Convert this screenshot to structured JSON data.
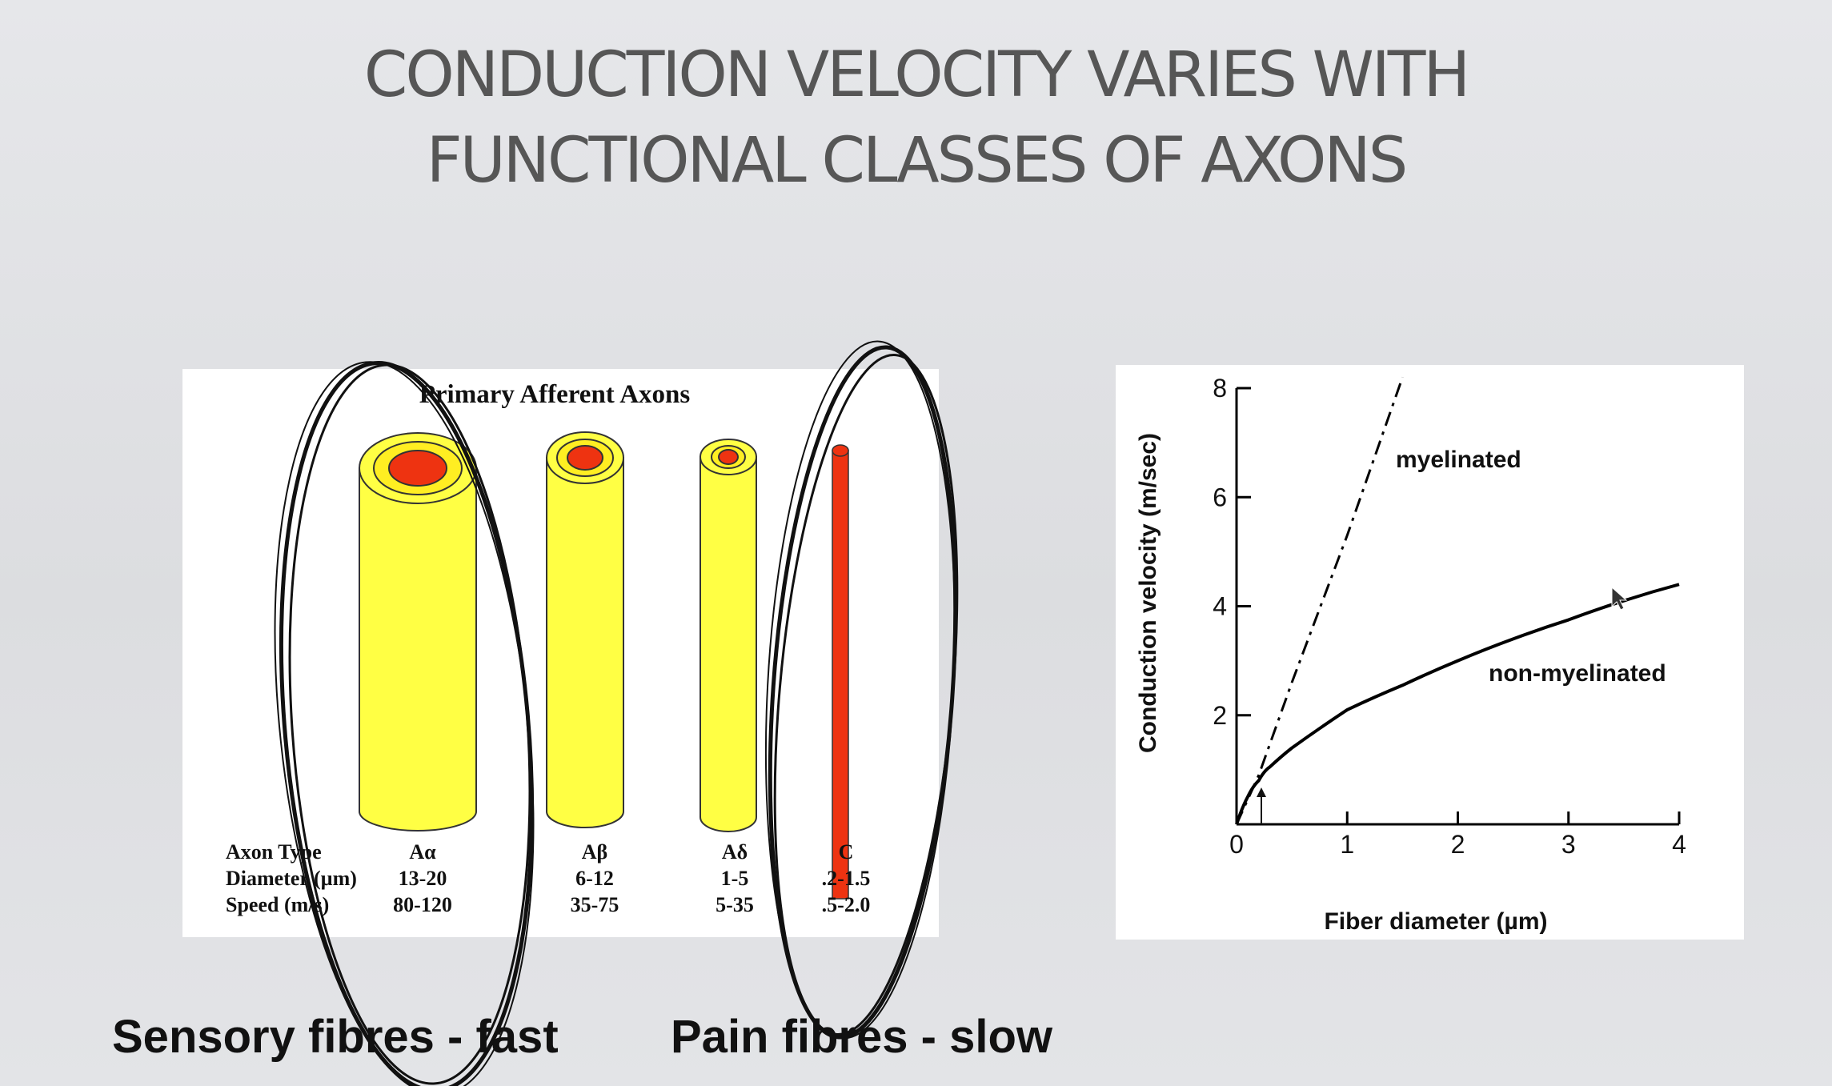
{
  "slide": {
    "title_line1": "CONDUCTION VELOCITY VARIES WITH",
    "title_line2": "FUNCTIONAL  CLASSES OF  AXONS",
    "caption_sensory": "Sensory fibres - fast",
    "caption_pain": "Pain fibres - slow"
  },
  "axon_table": {
    "title": "Primary Afferent Axons",
    "row_labels": [
      "Axon Type",
      "Diameter (µm)",
      "Speed (m/s)"
    ],
    "columns": [
      {
        "type": "Aα",
        "diameter": "13-20",
        "speed": "80-120"
      },
      {
        "type": "Aβ",
        "diameter": "6-12",
        "speed": "35-75"
      },
      {
        "type": "Aδ",
        "diameter": "1-5",
        "speed": "5-35"
      },
      {
        "type": "C",
        "diameter": ".2-1.5",
        "speed": ".5-2.0"
      }
    ],
    "colors": {
      "myelin": "#ffff44",
      "axon_core": "#ee3311",
      "outline": "#333333",
      "circle": "#111111"
    }
  },
  "chart_data": {
    "type": "line",
    "xlabel": "Fiber  diameter  (µm)",
    "ylabel": "Conduction  velocity  (m/sec)",
    "xlim": [
      0,
      4
    ],
    "ylim": [
      0,
      8
    ],
    "xticks": [
      "0",
      "1",
      "2",
      "3",
      "4"
    ],
    "yticks": [
      "2",
      "4",
      "6",
      "8"
    ],
    "series": [
      {
        "name": "myelinated",
        "style": "dash-dot",
        "x": [
          0,
          0.2,
          0.5,
          1.0,
          1.5
        ],
        "y": [
          0,
          0.9,
          2.6,
          5.3,
          8.2
        ]
      },
      {
        "name": "non-myelinated",
        "style": "solid",
        "x": [
          0,
          0.1,
          0.2,
          0.3,
          0.5,
          1.0,
          1.5,
          2.0,
          2.5,
          3.0,
          3.5,
          4.0
        ],
        "y": [
          0,
          0.5,
          0.8,
          1.05,
          1.4,
          2.1,
          2.55,
          3.0,
          3.4,
          3.75,
          4.1,
          4.4
        ]
      }
    ]
  }
}
